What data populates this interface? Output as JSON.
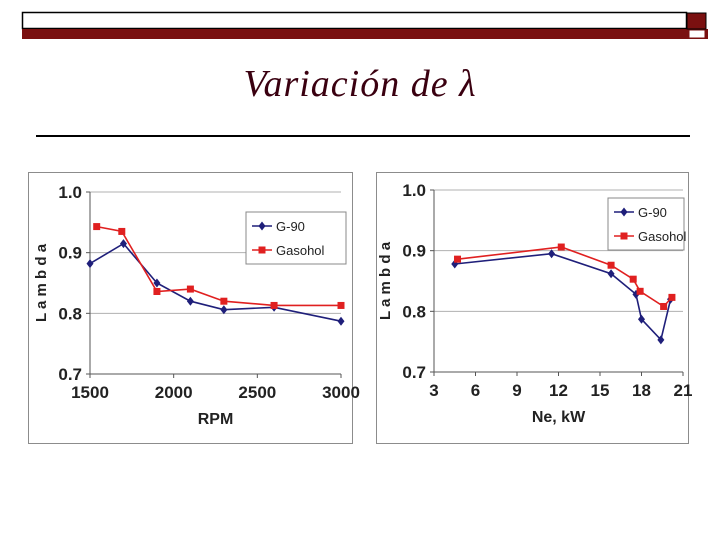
{
  "slide": {
    "title": "Variación de λ",
    "colors": {
      "bar_dark": "#6b0f12",
      "bar_light": "#a01818",
      "accent": "#c0392b",
      "rule": "#000000"
    }
  },
  "chart_data": [
    {
      "type": "line",
      "title": "",
      "xlabel": "RPM",
      "ylabel": "L a m b d a",
      "xlim": [
        1500,
        3000
      ],
      "ylim": [
        0.7,
        1.0
      ],
      "xticks": [
        1500,
        2000,
        2500,
        3000
      ],
      "yticks": [
        0.7,
        0.8,
        0.9,
        1.0
      ],
      "xtick_labels": [
        "1500",
        "2000",
        "2500",
        "3000"
      ],
      "ytick_labels": [
        "0.7",
        "0.8",
        "0.9",
        "1.0"
      ],
      "grid": "horizontal",
      "legend": "top-right",
      "series": [
        {
          "name": "G-90",
          "marker": "diamond",
          "color": "#1f1f7a",
          "x": [
            1500,
            1700,
            1900,
            2100,
            2300,
            2600,
            3000
          ],
          "y": [
            0.882,
            0.915,
            0.85,
            0.82,
            0.806,
            0.81,
            0.787
          ]
        },
        {
          "name": "Gasohol",
          "marker": "square",
          "color": "#e02020",
          "x": [
            1540,
            1690,
            1900,
            2100,
            2300,
            2600,
            3000
          ],
          "y": [
            0.943,
            0.935,
            0.836,
            0.84,
            0.82,
            0.813,
            0.813
          ]
        }
      ]
    },
    {
      "type": "line",
      "title": "",
      "xlabel": "Ne, kW",
      "ylabel": "L a m b d a",
      "xlim": [
        3,
        21
      ],
      "ylim": [
        0.7,
        1.0
      ],
      "xticks": [
        3,
        6,
        9,
        12,
        15,
        18,
        21
      ],
      "yticks": [
        0.7,
        0.8,
        0.9,
        1.0
      ],
      "xtick_labels": [
        "3",
        "6",
        "9",
        "12",
        "15",
        "18",
        "21"
      ],
      "ytick_labels": [
        "0.7",
        "0.8",
        "0.9",
        "1.0"
      ],
      "grid": "horizontal",
      "legend": "top-right",
      "series": [
        {
          "name": "G-90",
          "marker": "diamond",
          "color": "#1f1f7a",
          "x": [
            4.5,
            11.5,
            15.8,
            17.6,
            18.0,
            19.4,
            20.1
          ],
          "y": [
            0.878,
            0.895,
            0.862,
            0.828,
            0.787,
            0.753,
            0.82
          ]
        },
        {
          "name": "Gasohol",
          "marker": "square",
          "color": "#e02020",
          "x": [
            4.7,
            12.2,
            15.8,
            17.4,
            17.9,
            19.6,
            20.2
          ],
          "y": [
            0.886,
            0.906,
            0.876,
            0.853,
            0.833,
            0.808,
            0.823
          ]
        }
      ]
    }
  ]
}
